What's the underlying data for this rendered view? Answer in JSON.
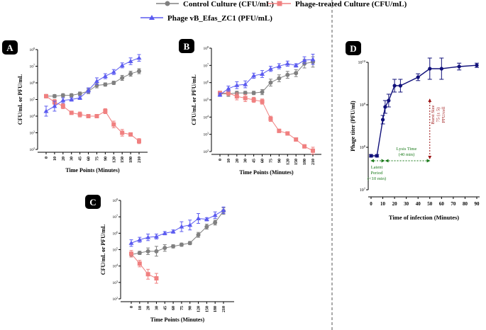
{
  "colors": {
    "control": "#808080",
    "phage_treated": "#f08080",
    "phage_titer": "#5b5bf0",
    "panel_d": "#10107a",
    "latent": "#1a7a1a",
    "burst": "#9b1010",
    "label_bg": "#000000"
  },
  "legend": [
    {
      "label": "Control Culture (CFU/mL)",
      "series": "control"
    },
    {
      "label": "Phage-treated Culture (CFU/mL)",
      "series": "phage_treated"
    },
    {
      "label": "Phage vB_Efas_ZC1 (PFU/mL)",
      "series": "phage_titer"
    }
  ],
  "chart_data": [
    {
      "panel": "A",
      "type": "line",
      "xlabel": "Time Points (Minutes)",
      "ylabel": "CFU/mL or PFU/mL",
      "x": [
        0,
        10,
        20,
        30,
        45,
        60,
        75,
        90,
        120,
        150,
        180,
        210
      ],
      "ylim_log10": [
        2,
        8
      ],
      "ytick_exponents": [
        2,
        3,
        4,
        5,
        6,
        7,
        8
      ],
      "series": [
        {
          "name": "Control Culture (CFU/mL)",
          "key": "control",
          "log10": [
            5.2,
            5.2,
            5.25,
            5.25,
            5.35,
            5.5,
            5.85,
            5.9,
            6.0,
            6.3,
            6.55,
            6.7
          ],
          "err_log10": [
            0.1,
            0.1,
            0.1,
            0.1,
            0.1,
            0.15,
            0.15,
            0.1,
            0.1,
            0.15,
            0.15,
            0.15
          ]
        },
        {
          "name": "Phage-treated Culture (CFU/mL)",
          "key": "phage_treated",
          "log10": [
            5.2,
            4.85,
            4.6,
            4.2,
            4.1,
            4.0,
            4.0,
            4.3,
            3.5,
            3.0,
            2.9,
            2.5
          ],
          "err_log10": [
            0.1,
            0.15,
            0.15,
            0.1,
            0.15,
            0.1,
            0.1,
            0.15,
            0.2,
            0.2,
            0.1,
            0.15
          ]
        },
        {
          "name": "Phage vB_Efas_ZC1 (PFU/mL)",
          "key": "phage_titer",
          "log10": [
            4.3,
            4.6,
            4.95,
            5.0,
            5.1,
            5.55,
            6.1,
            6.4,
            6.65,
            7.05,
            7.3,
            7.5
          ],
          "err_log10": [
            0.3,
            0.3,
            0.15,
            0.1,
            0.1,
            0.15,
            0.2,
            0.15,
            0.15,
            0.15,
            0.2,
            0.2
          ]
        }
      ]
    },
    {
      "panel": "B",
      "type": "line",
      "xlabel": "Time Points (Minutes)",
      "ylabel": "CFU/mL or PFU/mL",
      "x": [
        0,
        10,
        20,
        30,
        45,
        60,
        75,
        90,
        120,
        150,
        180,
        210
      ],
      "ylim_log10": [
        2,
        8
      ],
      "ytick_exponents": [
        2,
        3,
        4,
        5,
        6,
        7,
        8
      ],
      "series": [
        {
          "name": "Control Culture (CFU/mL)",
          "key": "control",
          "log10": [
            5.35,
            5.35,
            5.4,
            5.4,
            5.4,
            5.45,
            6.0,
            6.25,
            6.45,
            6.55,
            7.1,
            7.2
          ],
          "err_log10": [
            0.1,
            0.15,
            0.1,
            0.1,
            0.1,
            0.15,
            0.2,
            0.2,
            0.2,
            0.2,
            0.25,
            0.3
          ]
        },
        {
          "name": "Phage-treated Culture (CFU/mL)",
          "key": "phage_treated",
          "log10": [
            5.4,
            5.4,
            5.2,
            5.1,
            5.0,
            4.9,
            3.9,
            3.2,
            3.05,
            2.7,
            2.3,
            2.05
          ],
          "err_log10": [
            0.1,
            0.15,
            0.2,
            0.2,
            0.15,
            0.15,
            0.15,
            0.1,
            0.1,
            0.1,
            0.1,
            0.2
          ]
        },
        {
          "name": "Phage vB_Efas_ZC1 (PFU/mL)",
          "key": "phage_titer",
          "log10": [
            5.3,
            5.65,
            5.85,
            5.9,
            6.4,
            6.5,
            6.8,
            6.95,
            7.1,
            7.0,
            7.3,
            7.35
          ],
          "err_log10": [
            0.1,
            0.15,
            0.2,
            0.2,
            0.15,
            0.2,
            0.15,
            0.15,
            0.15,
            0.1,
            0.2,
            0.3
          ]
        }
      ]
    },
    {
      "panel": "C",
      "type": "line",
      "xlabel": "Time Points (Minutes)",
      "ylabel": "CFU/mL or PFU/mL",
      "x": [
        0,
        10,
        20,
        30,
        45,
        60,
        75,
        90,
        120,
        150,
        180,
        210
      ],
      "ylim_log10": [
        2,
        8
      ],
      "ytick_exponents": [
        2,
        3,
        4,
        5,
        6,
        7,
        8
      ],
      "series": [
        {
          "name": "Control Culture (CFU/mL)",
          "key": "control",
          "log10": [
            4.7,
            4.8,
            4.9,
            4.9,
            5.1,
            5.2,
            5.3,
            5.4,
            5.9,
            6.4,
            6.65,
            7.35
          ],
          "err_log10": [
            0.15,
            0.1,
            0.2,
            0.3,
            0.2,
            0.1,
            0.1,
            0.1,
            0.15,
            0.15,
            0.15,
            0.2
          ]
        },
        {
          "name": "Phage-treated Culture (CFU/mL)",
          "key": "phage_treated",
          "log10": [
            4.75,
            4.15,
            3.5,
            3.25
          ],
          "err_log10": [
            0.2,
            0.2,
            0.3,
            0.3
          ]
        },
        {
          "name": "Phage vB_Efas_ZC1 (PFU/mL)",
          "key": "phage_titer",
          "log10": [
            5.4,
            5.6,
            5.75,
            5.8,
            6.0,
            6.1,
            6.4,
            6.5,
            6.9,
            6.85,
            7.1,
            7.4
          ],
          "err_log10": [
            0.2,
            0.15,
            0.2,
            0.15,
            0.1,
            0.1,
            0.3,
            0.3,
            0.3,
            0.1,
            0.2,
            0.2
          ]
        }
      ]
    },
    {
      "panel": "D",
      "type": "line",
      "xlabel": "Time of infection (Minutes)",
      "ylabel": "Phage titer (PFU/ml)",
      "x": [
        0,
        5,
        10,
        12,
        15,
        20,
        25,
        40,
        50,
        60,
        75,
        90
      ],
      "xlim": [
        0,
        90
      ],
      "xticks": [
        0,
        10,
        20,
        30,
        40,
        50,
        60,
        70,
        80,
        90
      ],
      "ylim_log10": [
        7,
        10
      ],
      "ytick_exponents": [
        7,
        8,
        9,
        10
      ],
      "series": [
        {
          "name": "Phage titer",
          "key": "panel_d",
          "log10": [
            7.8,
            7.8,
            8.65,
            8.95,
            9.1,
            9.45,
            9.45,
            9.65,
            9.85,
            9.85,
            9.9,
            9.93
          ],
          "err_log10": [
            0.03,
            0.03,
            0.1,
            0.15,
            0.15,
            0.15,
            0.15,
            0.08,
            0.25,
            0.25,
            0.08,
            0.05
          ]
        }
      ],
      "annotations": {
        "latent_period": {
          "label_line1": "Latent",
          "label_line2": "Period",
          "label_line3": "(<10 min)",
          "from_min": 0,
          "to_min": 10
        },
        "lysis_time": {
          "label_line1": "Lysis Time",
          "label_line2": "(40 min)",
          "from_min": 10,
          "to_min": 50
        },
        "burst_size": {
          "label_line1": "Burst Size",
          "label_line2": "75 (± 5)",
          "label_line3": "PFU/cell",
          "at_min": 50
        }
      }
    }
  ],
  "tick_base": "10"
}
